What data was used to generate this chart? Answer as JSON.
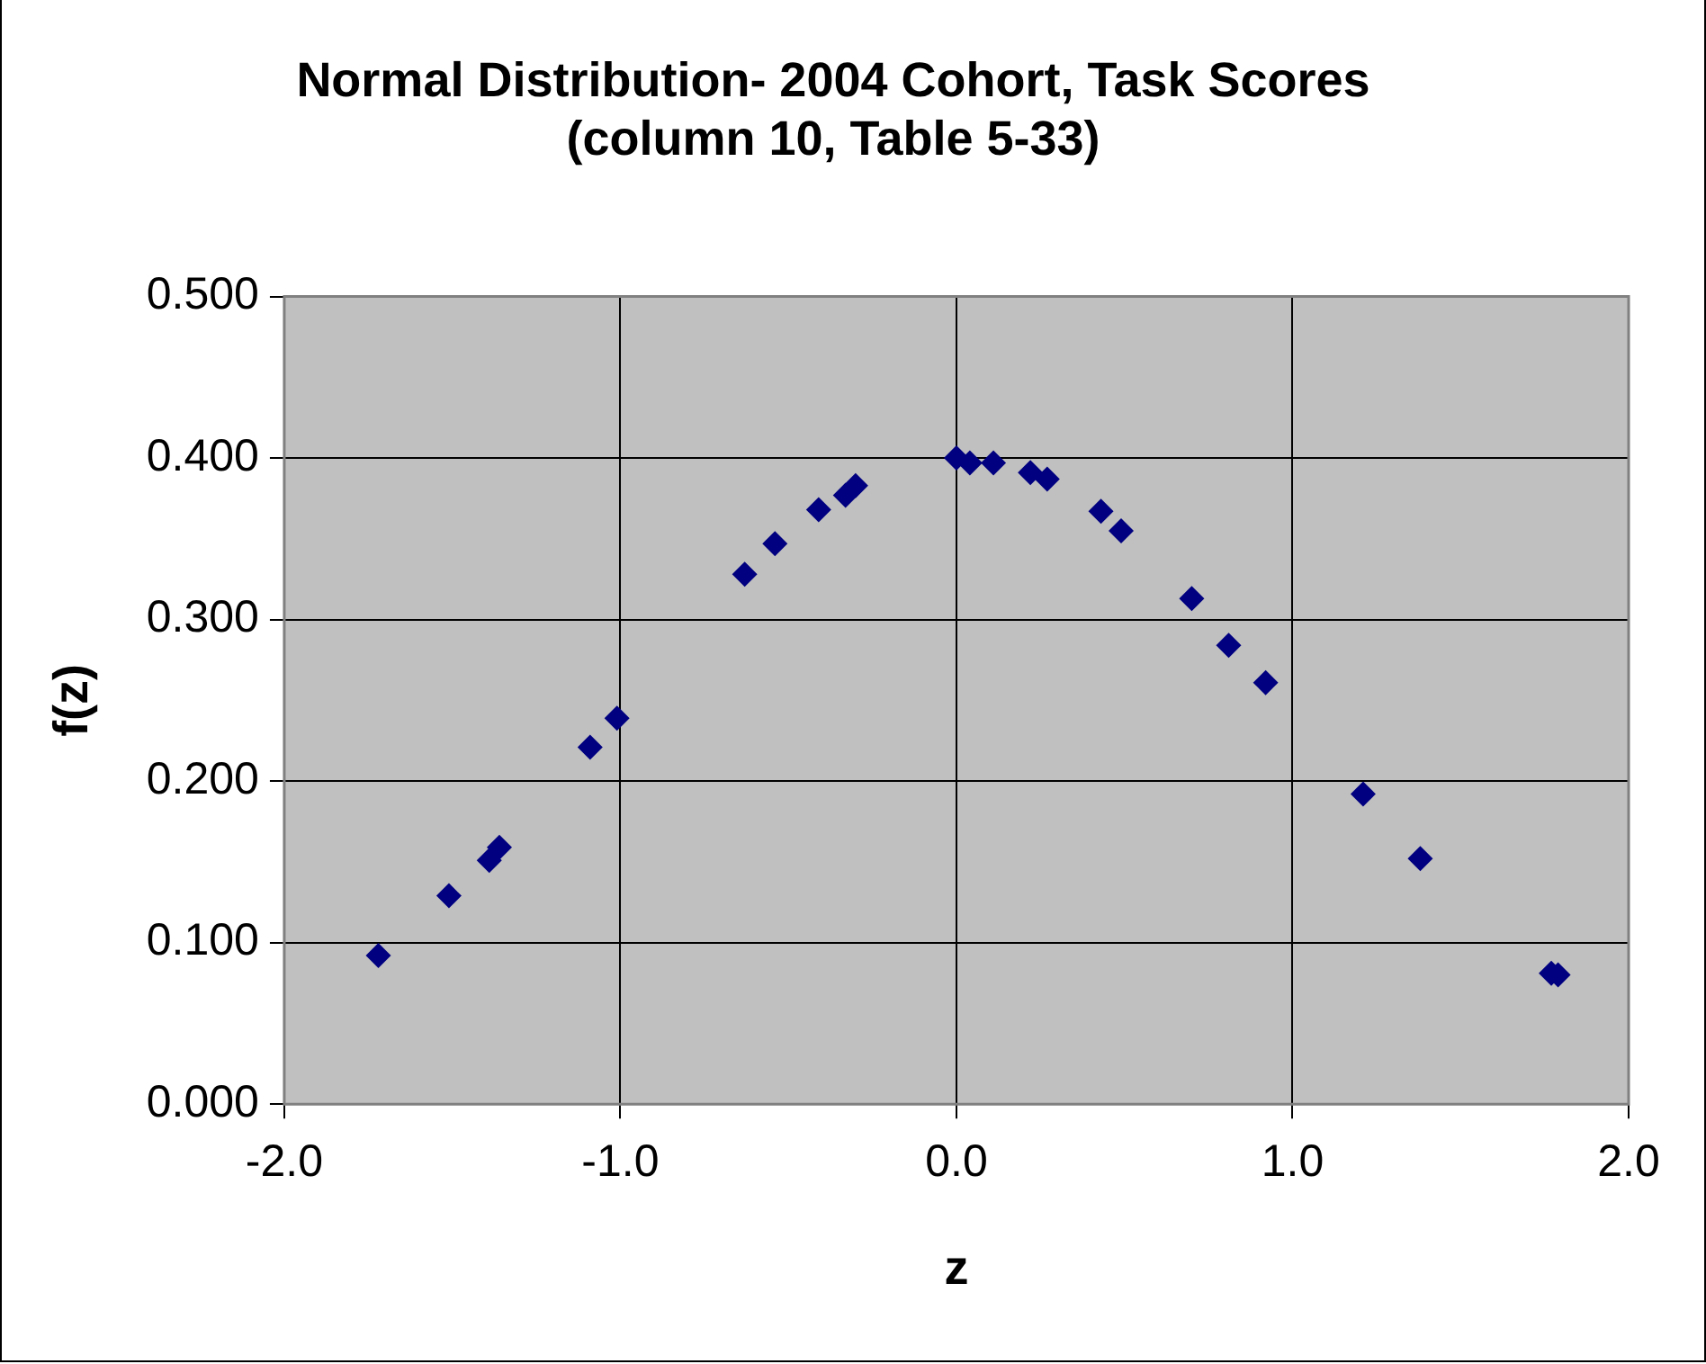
{
  "chart_data": {
    "type": "scatter",
    "title": "Normal Distribution- 2004 Cohort, Task Scores (column 10, Table 5-33)",
    "xlabel": "z",
    "ylabel": "f(z)",
    "x": [
      -1.72,
      -1.51,
      -1.39,
      -1.36,
      -1.09,
      -1.01,
      -0.63,
      -0.54,
      -0.41,
      -0.33,
      -0.3,
      0.0,
      0.04,
      0.11,
      0.22,
      0.27,
      0.43,
      0.49,
      0.7,
      0.81,
      0.92,
      1.21,
      1.38,
      1.77,
      1.79
    ],
    "series": [
      {
        "color": "#000080",
        "values": [
          0.092,
          0.129,
          0.151,
          0.159,
          0.221,
          0.239,
          0.328,
          0.347,
          0.368,
          0.377,
          0.383,
          0.4,
          0.397,
          0.397,
          0.391,
          0.387,
          0.367,
          0.355,
          0.313,
          0.284,
          0.261,
          0.192,
          0.152,
          0.081,
          0.08
        ]
      }
    ],
    "xlim": [
      -2,
      2
    ],
    "xticks": [
      {
        "value": -2,
        "label": "-2.0"
      },
      {
        "value": -1,
        "label": "-1.0"
      },
      {
        "value": 0,
        "label": "0.0"
      },
      {
        "value": 1,
        "label": "1.0"
      },
      {
        "value": 2,
        "label": "2.0"
      }
    ],
    "ylim": [
      0,
      0.5
    ],
    "yticks": [
      {
        "value": 0,
        "label": "0.000"
      },
      {
        "value": 0.1,
        "label": "0.100"
      },
      {
        "value": 0.2,
        "label": "0.200"
      },
      {
        "value": 0.3,
        "label": "0.300"
      },
      {
        "value": 0.4,
        "label": "0.400"
      },
      {
        "value": 0.5,
        "label": "0.500"
      }
    ],
    "grid": true,
    "marker": "diamond"
  }
}
